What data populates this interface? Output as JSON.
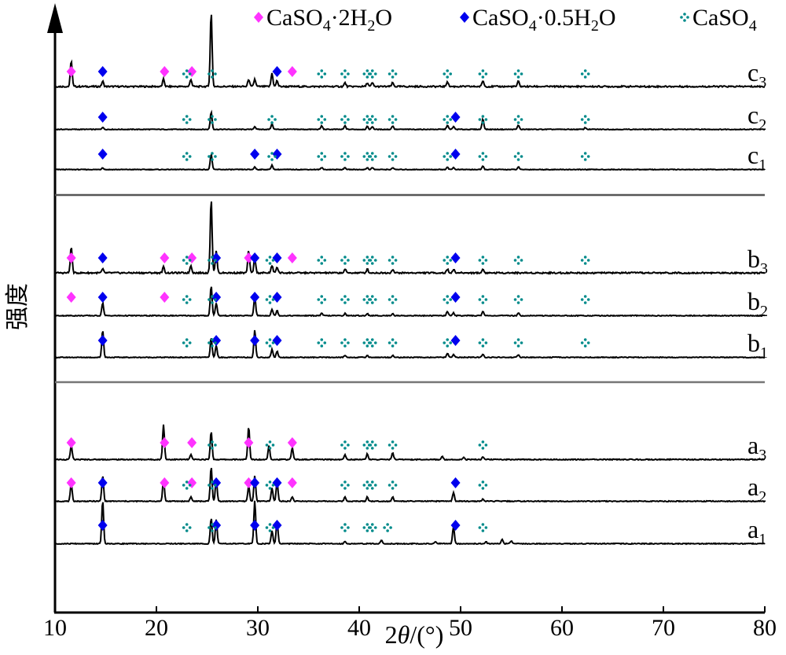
{
  "chart_data": {
    "type": "line",
    "xlabel_prefix": "2",
    "xlabel_theta": "θ",
    "xlabel_suffix": "/(°)",
    "ylabel": "强度",
    "xlim": [
      10,
      80
    ],
    "x_ticks": [
      "10",
      "20",
      "30",
      "40",
      "50",
      "60",
      "70",
      "80"
    ],
    "legend": {
      "placement": "top-right",
      "items": [
        {
          "phase": "dihydrate",
          "marker": "diamond",
          "color": "#ff33ff",
          "base": "CaSO",
          "s1": "4",
          "mid": "·2H",
          "s2": "2",
          "end": "O"
        },
        {
          "phase": "hemihydrate",
          "marker": "diamond",
          "color": "#0000ee",
          "base": "CaSO",
          "s1": "4",
          "mid": "·0.5H",
          "s2": "2",
          "end": "O"
        },
        {
          "phase": "anhydrite",
          "marker": "dots",
          "color": "#008b8b",
          "base": "CaSO",
          "s1": "4",
          "mid": "",
          "s2": "",
          "end": ""
        }
      ]
    },
    "series": [
      {
        "name": "c3",
        "letter": "c",
        "sub": "3",
        "group": "c",
        "peaks": [
          [
            11.6,
            0.35
          ],
          [
            14.7,
            0.07
          ],
          [
            20.7,
            0.1
          ],
          [
            23.4,
            0.1
          ],
          [
            25.4,
            1.0
          ],
          [
            29.1,
            0.1
          ],
          [
            29.7,
            0.1
          ],
          [
            31.4,
            0.18
          ],
          [
            31.9,
            0.08
          ],
          [
            38.6,
            0.05
          ],
          [
            40.8,
            0.05
          ],
          [
            41.3,
            0.05
          ],
          [
            43.3,
            0.05
          ],
          [
            48.7,
            0.07
          ],
          [
            52.2,
            0.08
          ],
          [
            55.7,
            0.07
          ]
        ],
        "markers": {
          "dihydrate": [
            11.6,
            20.8,
            23.5,
            33.4
          ],
          "hemihydrate": [
            14.7,
            31.9
          ],
          "anhydrite": [
            23.0,
            25.5,
            36.3,
            38.6,
            40.8,
            41.3,
            43.3,
            48.7,
            52.2,
            55.7,
            62.3
          ]
        }
      },
      {
        "name": "c2",
        "letter": "c",
        "sub": "2",
        "group": "c",
        "peaks": [
          [
            14.7,
            0.06
          ],
          [
            25.4,
            0.5
          ],
          [
            29.7,
            0.08
          ],
          [
            31.4,
            0.16
          ],
          [
            36.3,
            0.1
          ],
          [
            38.6,
            0.1
          ],
          [
            40.8,
            0.08
          ],
          [
            41.3,
            0.08
          ],
          [
            43.3,
            0.1
          ],
          [
            48.7,
            0.12
          ],
          [
            49.3,
            0.08
          ],
          [
            52.2,
            0.3
          ],
          [
            55.7,
            0.12
          ],
          [
            62.3,
            0.05
          ]
        ],
        "markers": {
          "dihydrate": [],
          "hemihydrate": [
            14.7,
            49.5
          ],
          "anhydrite": [
            23.0,
            25.5,
            31.4,
            36.3,
            38.6,
            40.8,
            41.3,
            43.3,
            48.7,
            52.2,
            55.7,
            62.3
          ]
        }
      },
      {
        "name": "c1",
        "letter": "c",
        "sub": "1",
        "group": "c",
        "peaks": [
          [
            14.7,
            0.06
          ],
          [
            25.4,
            0.5
          ],
          [
            29.7,
            0.08
          ],
          [
            31.4,
            0.14
          ],
          [
            36.3,
            0.06
          ],
          [
            38.6,
            0.06
          ],
          [
            40.8,
            0.06
          ],
          [
            41.3,
            0.06
          ],
          [
            43.3,
            0.06
          ],
          [
            48.7,
            0.08
          ],
          [
            49.3,
            0.06
          ],
          [
            52.2,
            0.1
          ],
          [
            55.7,
            0.08
          ]
        ],
        "markers": {
          "dihydrate": [],
          "hemihydrate": [
            14.7,
            29.7,
            31.9,
            49.5
          ],
          "anhydrite": [
            23.0,
            25.5,
            31.4,
            36.3,
            38.6,
            40.8,
            41.3,
            43.3,
            48.7,
            52.2,
            55.7,
            62.3
          ]
        }
      },
      {
        "name": "b3",
        "letter": "b",
        "sub": "3",
        "group": "b",
        "peaks": [
          [
            11.6,
            0.35
          ],
          [
            14.7,
            0.05
          ],
          [
            20.7,
            0.08
          ],
          [
            23.4,
            0.1
          ],
          [
            25.4,
            1.0
          ],
          [
            25.9,
            0.3
          ],
          [
            29.1,
            0.3
          ],
          [
            29.7,
            0.2
          ],
          [
            31.4,
            0.1
          ],
          [
            31.9,
            0.08
          ],
          [
            38.6,
            0.05
          ],
          [
            40.8,
            0.05
          ],
          [
            43.3,
            0.05
          ],
          [
            48.7,
            0.05
          ],
          [
            49.3,
            0.05
          ],
          [
            52.2,
            0.05
          ]
        ],
        "markers": {
          "dihydrate": [
            11.6,
            20.8,
            23.5,
            29.1,
            33.4
          ],
          "hemihydrate": [
            14.7,
            25.9,
            29.7,
            31.9,
            49.5
          ],
          "anhydrite": [
            23.0,
            25.5,
            31.2,
            36.3,
            38.6,
            40.8,
            41.3,
            43.3,
            48.7,
            52.2,
            55.7,
            62.3
          ]
        }
      },
      {
        "name": "b2",
        "letter": "b",
        "sub": "2",
        "group": "b",
        "peaks": [
          [
            14.7,
            0.3
          ],
          [
            25.4,
            0.7
          ],
          [
            25.9,
            0.3
          ],
          [
            29.7,
            0.45
          ],
          [
            31.4,
            0.15
          ],
          [
            31.9,
            0.12
          ],
          [
            36.3,
            0.05
          ],
          [
            38.6,
            0.05
          ],
          [
            40.8,
            0.05
          ],
          [
            43.3,
            0.05
          ],
          [
            48.7,
            0.1
          ],
          [
            49.3,
            0.07
          ],
          [
            52.2,
            0.1
          ],
          [
            55.7,
            0.06
          ]
        ],
        "markers": {
          "dihydrate": [
            11.6,
            20.8
          ],
          "hemihydrate": [
            14.7,
            25.9,
            29.7,
            31.9,
            49.5
          ],
          "anhydrite": [
            23.0,
            25.5,
            31.2,
            36.3,
            38.6,
            40.8,
            41.3,
            43.3,
            48.7,
            52.2,
            55.7,
            62.3
          ]
        }
      },
      {
        "name": "b1",
        "letter": "b",
        "sub": "1",
        "group": "b",
        "peaks": [
          [
            14.7,
            0.7
          ],
          [
            25.4,
            0.5
          ],
          [
            25.9,
            0.3
          ],
          [
            29.7,
            0.7
          ],
          [
            31.4,
            0.2
          ],
          [
            31.9,
            0.16
          ],
          [
            38.6,
            0.05
          ],
          [
            40.8,
            0.05
          ],
          [
            43.3,
            0.05
          ],
          [
            48.7,
            0.1
          ],
          [
            49.3,
            0.08
          ],
          [
            52.2,
            0.08
          ],
          [
            55.7,
            0.07
          ]
        ],
        "markers": {
          "dihydrate": [],
          "hemihydrate": [
            14.7,
            25.9,
            29.7,
            31.9,
            49.5
          ],
          "anhydrite": [
            23.0,
            25.5,
            31.2,
            36.3,
            38.6,
            40.8,
            41.3,
            43.3,
            48.7,
            52.2,
            55.7,
            62.3
          ]
        }
      },
      {
        "name": "a3",
        "letter": "a",
        "sub": "3",
        "group": "a",
        "peaks": [
          [
            11.6,
            0.3
          ],
          [
            20.7,
            0.75
          ],
          [
            23.4,
            0.1
          ],
          [
            25.4,
            0.6
          ],
          [
            29.1,
            0.7
          ],
          [
            31.1,
            0.3
          ],
          [
            33.4,
            0.25
          ],
          [
            38.6,
            0.1
          ],
          [
            40.8,
            0.12
          ],
          [
            43.3,
            0.15
          ],
          [
            48.2,
            0.06
          ],
          [
            50.3,
            0.05
          ],
          [
            52.2,
            0.05
          ]
        ],
        "markers": {
          "dihydrate": [
            11.6,
            20.8,
            23.5,
            29.1,
            33.4
          ],
          "hemihydrate": [],
          "anhydrite": [
            25.5,
            31.2,
            38.6,
            40.8,
            41.3,
            43.3,
            52.2
          ]
        }
      },
      {
        "name": "a2",
        "letter": "a",
        "sub": "2",
        "group": "a",
        "peaks": [
          [
            11.6,
            0.4
          ],
          [
            14.7,
            0.6
          ],
          [
            20.7,
            0.5
          ],
          [
            23.4,
            0.1
          ],
          [
            25.4,
            0.8
          ],
          [
            25.9,
            0.5
          ],
          [
            29.1,
            0.35
          ],
          [
            29.7,
            0.6
          ],
          [
            31.4,
            0.3
          ],
          [
            31.9,
            0.45
          ],
          [
            33.4,
            0.1
          ],
          [
            38.6,
            0.1
          ],
          [
            40.8,
            0.1
          ],
          [
            43.3,
            0.1
          ],
          [
            49.3,
            0.2
          ],
          [
            52.2,
            0.05
          ]
        ],
        "markers": {
          "dihydrate": [
            11.6,
            20.8,
            23.5,
            29.1,
            33.4
          ],
          "hemihydrate": [
            14.7,
            25.9,
            29.7,
            31.9,
            49.5
          ],
          "anhydrite": [
            23.0,
            25.5,
            31.2,
            38.6,
            40.8,
            41.3,
            43.3,
            52.2
          ]
        }
      },
      {
        "name": "a1",
        "letter": "a",
        "sub": "1",
        "group": "a",
        "peaks": [
          [
            14.7,
            1.0
          ],
          [
            25.4,
            0.6
          ],
          [
            25.9,
            0.55
          ],
          [
            29.7,
            1.0
          ],
          [
            31.4,
            0.3
          ],
          [
            31.9,
            0.55
          ],
          [
            38.6,
            0.05
          ],
          [
            42.2,
            0.08
          ],
          [
            47.5,
            0.05
          ],
          [
            49.3,
            0.4
          ],
          [
            52.5,
            0.05
          ],
          [
            54.1,
            0.1
          ],
          [
            55.0,
            0.06
          ]
        ],
        "markers": {
          "dihydrate": [],
          "hemihydrate": [
            14.7,
            25.9,
            29.7,
            31.9,
            49.5
          ],
          "anhydrite": [
            23.0,
            25.5,
            31.2,
            38.6,
            40.8,
            41.3,
            42.8,
            52.2
          ]
        }
      }
    ]
  }
}
